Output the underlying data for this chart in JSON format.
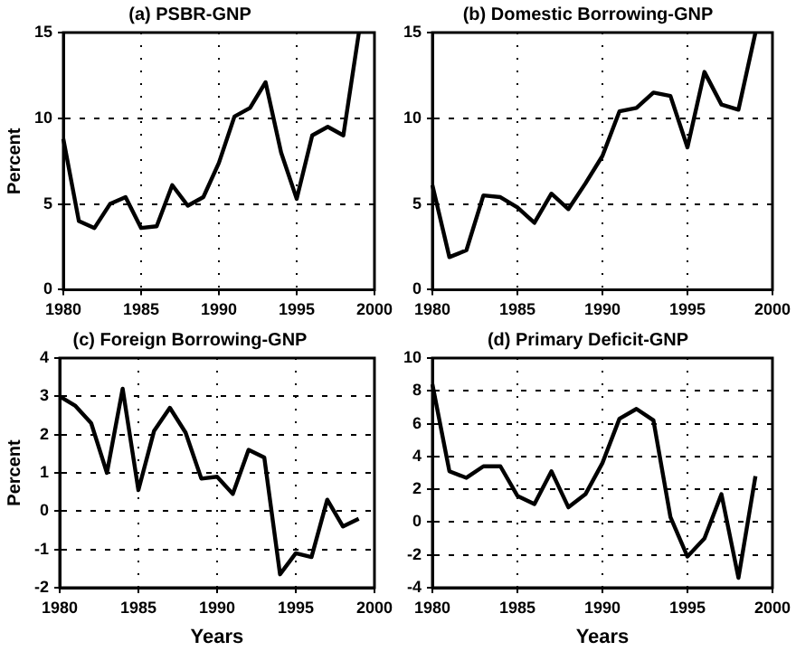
{
  "chart_data": [
    {
      "type": "line",
      "title": "(a) PSBR-GNP",
      "ylabel": "Percent",
      "x": [
        1980,
        1981,
        1982,
        1983,
        1984,
        1985,
        1986,
        1987,
        1988,
        1989,
        1990,
        1991,
        1992,
        1993,
        1994,
        1995,
        1996,
        1997,
        1998,
        1999
      ],
      "series": [
        {
          "color": "#000000",
          "values": [
            8.8,
            4.0,
            3.6,
            5.0,
            5.4,
            3.6,
            3.7,
            6.1,
            4.9,
            5.4,
            7.4,
            10.1,
            10.6,
            12.1,
            8.0,
            5.3,
            9.0,
            9.5,
            9.0,
            15
          ]
        }
      ],
      "xlim": [
        1980,
        2000
      ],
      "xticks": [
        1980,
        1985,
        1990,
        1995,
        2000
      ],
      "ylim": [
        0,
        15
      ],
      "yticks": [
        0,
        5,
        10,
        15
      ],
      "grid": true
    },
    {
      "type": "line",
      "title": "(b) Domestic Borrowing-GNP",
      "x": [
        1980,
        1981,
        1982,
        1983,
        1984,
        1985,
        1986,
        1987,
        1988,
        1989,
        1990,
        1991,
        1992,
        1993,
        1994,
        1995,
        1996,
        1997,
        1998,
        1999
      ],
      "series": [
        {
          "color": "#000000",
          "values": [
            6.1,
            1.9,
            2.3,
            5.5,
            5.4,
            4.8,
            3.9,
            5.6,
            4.7,
            6.2,
            7.8,
            10.4,
            10.6,
            11.5,
            11.3,
            8.3,
            12.7,
            10.8,
            10.5,
            15
          ]
        }
      ],
      "xlim": [
        1980,
        2000
      ],
      "xticks": [
        1980,
        1985,
        1990,
        1995,
        2000
      ],
      "ylim": [
        0,
        15
      ],
      "yticks": [
        0,
        5,
        10,
        15
      ],
      "grid": true
    },
    {
      "type": "line",
      "title": "(c) Foreign Borrowing-GNP",
      "xlabel": "Years",
      "ylabel": "Percent",
      "x": [
        1980,
        1981,
        1982,
        1983,
        1984,
        1985,
        1986,
        1987,
        1988,
        1989,
        1990,
        1991,
        1992,
        1993,
        1994,
        1995,
        1996,
        1997,
        1998,
        1999
      ],
      "series": [
        {
          "color": "#000000",
          "values": [
            3.0,
            2.75,
            2.3,
            1.0,
            3.2,
            0.55,
            2.1,
            2.7,
            2.05,
            0.85,
            0.9,
            0.45,
            1.6,
            1.4,
            -1.65,
            -1.1,
            -1.2,
            0.3,
            -0.4,
            -0.2
          ]
        }
      ],
      "xlim": [
        1980,
        2000
      ],
      "xticks": [
        1980,
        1985,
        1990,
        1995,
        2000
      ],
      "ylim": [
        -2,
        4
      ],
      "yticks": [
        -2,
        -1,
        0,
        1,
        2,
        3,
        4
      ],
      "grid": true
    },
    {
      "type": "line",
      "title": "(d) Primary Deficit-GNP",
      "xlabel": "Years",
      "x": [
        1980,
        1981,
        1982,
        1983,
        1984,
        1985,
        1986,
        1987,
        1988,
        1989,
        1990,
        1991,
        1992,
        1993,
        1994,
        1995,
        1996,
        1997,
        1998,
        1999
      ],
      "series": [
        {
          "color": "#000000",
          "values": [
            8.4,
            3.1,
            2.7,
            3.4,
            3.4,
            1.6,
            1.1,
            3.1,
            0.9,
            1.7,
            3.6,
            6.3,
            6.9,
            6.2,
            0.3,
            -2.1,
            -1.0,
            1.7,
            -3.4,
            2.8
          ]
        }
      ],
      "xlim": [
        1980,
        2000
      ],
      "xticks": [
        1980,
        1985,
        1990,
        1995,
        2000
      ],
      "ylim": [
        -4,
        10
      ],
      "yticks": [
        -4,
        -2,
        0,
        2,
        4,
        6,
        8,
        10
      ],
      "grid": true
    }
  ]
}
